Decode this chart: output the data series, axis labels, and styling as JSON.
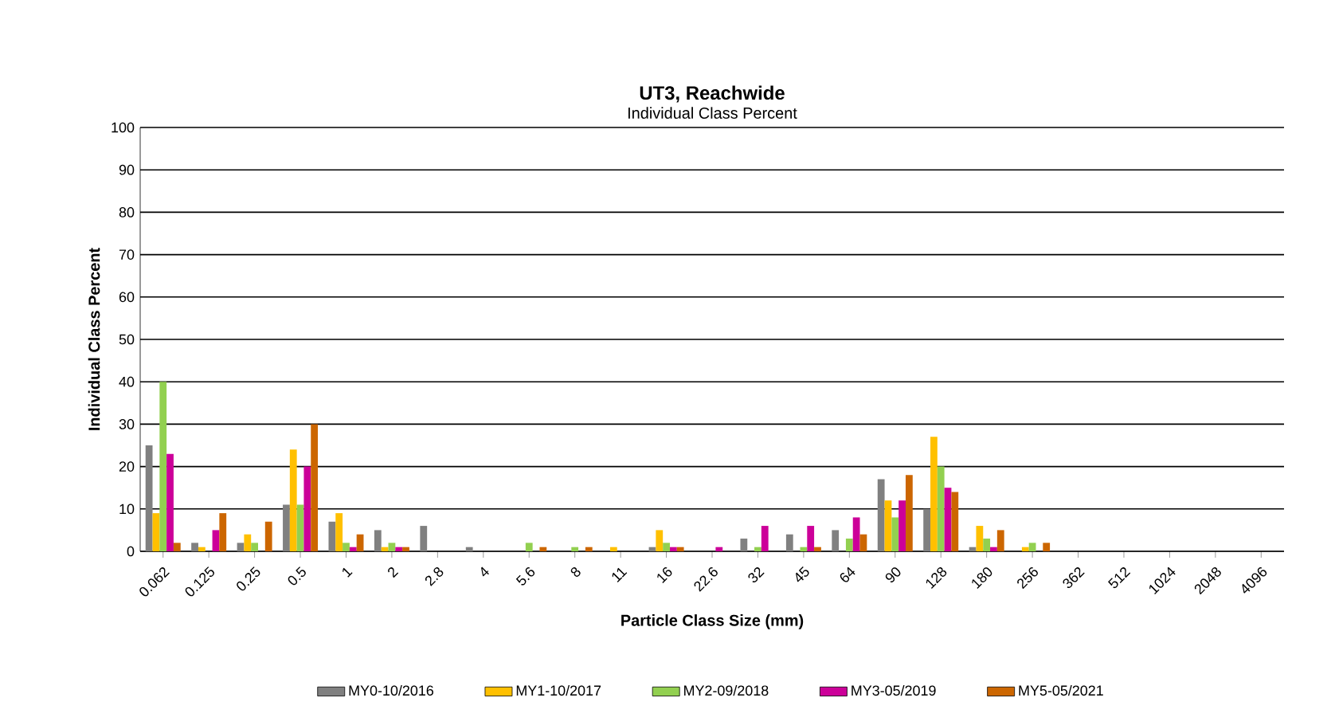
{
  "chart_data": {
    "type": "bar",
    "title": "UT3, Reachwide",
    "subtitle": "Individual Class Percent",
    "xlabel": "Particle Class Size (mm)",
    "ylabel": "Individual Class Percent",
    "categories": [
      "0.062",
      "0.125",
      "0.25",
      "0.5",
      "1",
      "2",
      "2.8",
      "4",
      "5.6",
      "8",
      "11",
      "16",
      "22.6",
      "32",
      "45",
      "64",
      "90",
      "128",
      "180",
      "256",
      "362",
      "512",
      "1024",
      "2048",
      "4096"
    ],
    "series": [
      {
        "name": "MY0-10/2016",
        "color": "#808080",
        "values": [
          25,
          2,
          2,
          11,
          7,
          5,
          6,
          1,
          0,
          0,
          0,
          1,
          0,
          3,
          4,
          5,
          17,
          10,
          1,
          0,
          0,
          0,
          0,
          0,
          0
        ]
      },
      {
        "name": "MY1-10/2017",
        "color": "#ffc000",
        "values": [
          9,
          1,
          4,
          24,
          9,
          1,
          0,
          0,
          0,
          0,
          1,
          5,
          0,
          0,
          0,
          0,
          12,
          27,
          6,
          1,
          0,
          0,
          0,
          0,
          0
        ]
      },
      {
        "name": "MY2-09/2018",
        "color": "#92d050",
        "values": [
          40,
          0,
          2,
          11,
          2,
          2,
          0,
          0,
          2,
          1,
          0,
          2,
          0,
          1,
          1,
          3,
          8,
          20,
          3,
          2,
          0,
          0,
          0,
          0,
          0
        ]
      },
      {
        "name": "MY3-05/2019",
        "color": "#cc0099",
        "values": [
          23,
          5,
          0,
          20,
          1,
          1,
          0,
          0,
          0,
          0,
          0,
          1,
          1,
          6,
          6,
          8,
          12,
          15,
          1,
          0,
          0,
          0,
          0,
          0,
          0
        ]
      },
      {
        "name": "MY5-05/2021",
        "color": "#cc6600",
        "values": [
          2,
          9,
          7,
          30,
          4,
          1,
          0,
          0,
          1,
          1,
          0,
          1,
          0,
          0,
          1,
          4,
          18,
          14,
          5,
          2,
          0,
          0,
          0,
          0,
          0
        ]
      }
    ],
    "ylim": [
      0,
      100
    ],
    "yticks": [
      0,
      10,
      20,
      30,
      40,
      50,
      60,
      70,
      80,
      90,
      100
    ],
    "grid": "y",
    "legend": "bottom"
  }
}
